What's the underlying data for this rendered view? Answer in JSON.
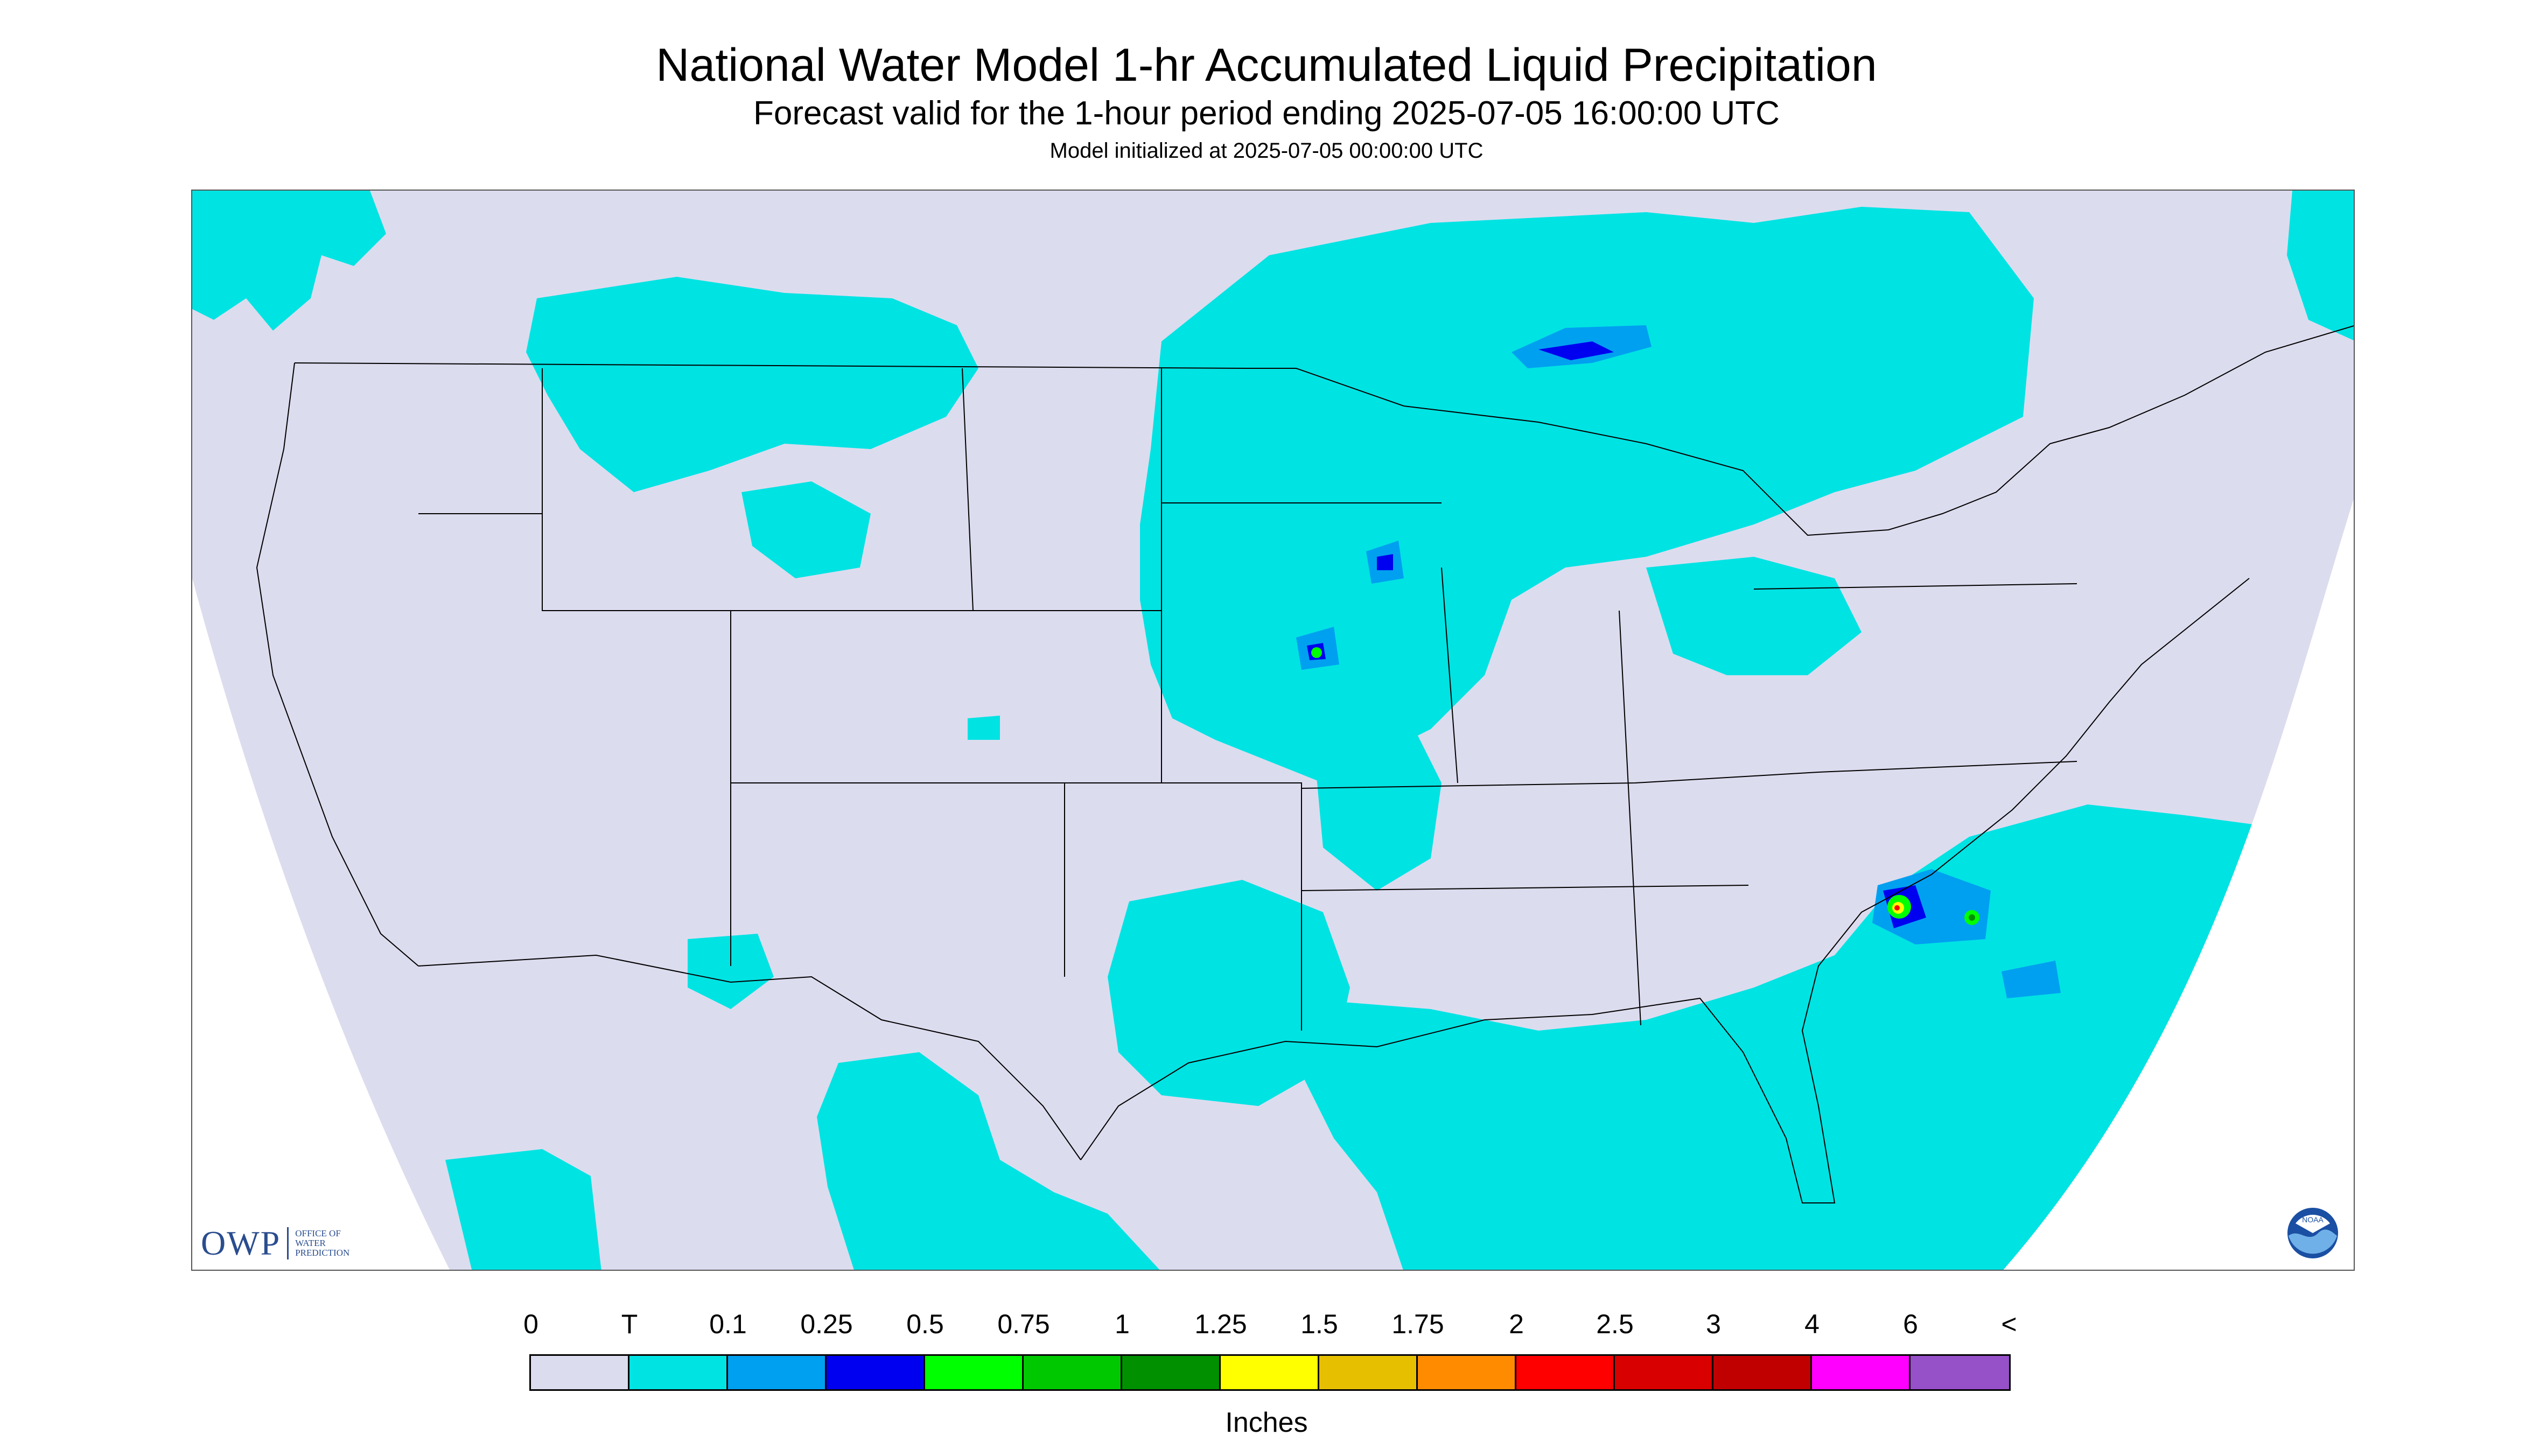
{
  "title": "National Water Model 1-hr Accumulated Liquid Precipitation",
  "subtitle": "Forecast valid for the 1-hour period ending 2025-07-05 16:00:00 UTC",
  "init_line": "Model initialized at 2025-07-05 00:00:00 UTC",
  "units": "Inches",
  "legend": {
    "labels": [
      "0",
      "T",
      "0.1",
      "0.25",
      "0.5",
      "0.75",
      "1",
      "1.25",
      "1.5",
      "1.75",
      "2",
      "2.5",
      "3",
      "4",
      "6",
      "<"
    ],
    "colors": [
      "#dcdcef",
      "#00e3e3",
      "#00a0f0",
      "#0000f0",
      "#00ff00",
      "#00c800",
      "#009000",
      "#ffff00",
      "#e6bf00",
      "#ff8c00",
      "#ff0000",
      "#d80000",
      "#c00000",
      "#ff00ff",
      "#9650c8"
    ]
  },
  "logos": {
    "owp": {
      "word": "OWP",
      "sub": [
        "OFFICE OF",
        "WATER",
        "PREDICTION"
      ]
    },
    "noaa": "NOAA"
  },
  "map": {
    "background_color": "#dcdcef",
    "outside_color": "#ffffff",
    "colors": {
      "trace": "#00e3e3",
      "light": "#00a0f0",
      "moderate": "#0000f0",
      "heavy_green": "#00ff00",
      "heavy_dark": "#009000",
      "yellow": "#ffff00",
      "red": "#ff0000"
    }
  }
}
